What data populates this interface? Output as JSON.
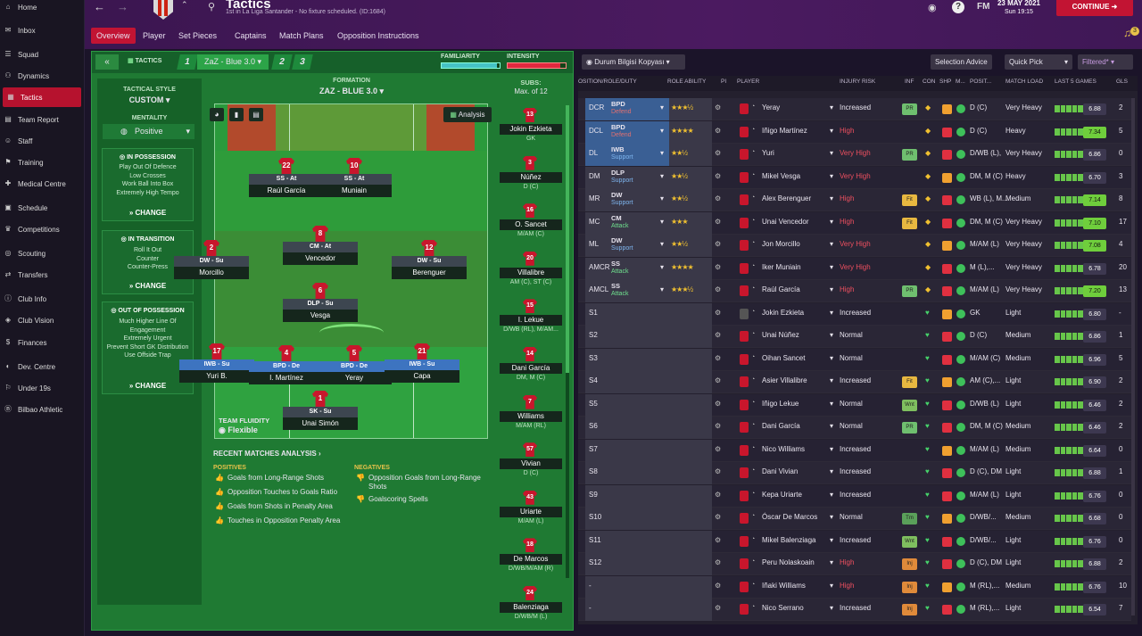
{
  "sidebar": {
    "items": [
      {
        "label": "Home",
        "icon": "home-icon"
      },
      {
        "label": "Inbox",
        "icon": "inbox-icon"
      },
      {
        "label": "Squad",
        "icon": "squad-icon"
      },
      {
        "label": "Dynamics",
        "icon": "dynamics-icon"
      },
      {
        "label": "Tactics",
        "icon": "tactics-icon",
        "active": true
      },
      {
        "label": "Team Report",
        "icon": "report-icon"
      },
      {
        "label": "Staff",
        "icon": "staff-icon"
      },
      {
        "label": "Training",
        "icon": "training-icon"
      },
      {
        "label": "Medical Centre",
        "icon": "medical-icon"
      },
      {
        "label": "Schedule",
        "icon": "schedule-icon"
      },
      {
        "label": "Competitions",
        "icon": "trophy-icon"
      },
      {
        "label": "Scouting",
        "icon": "scouting-icon"
      },
      {
        "label": "Transfers",
        "icon": "transfers-icon"
      },
      {
        "label": "Club Info",
        "icon": "info-icon"
      },
      {
        "label": "Club Vision",
        "icon": "vision-icon"
      },
      {
        "label": "Finances",
        "icon": "finances-icon"
      },
      {
        "label": "Dev. Centre",
        "icon": "dev-icon"
      },
      {
        "label": "Under 19s",
        "icon": "u19-icon"
      },
      {
        "label": "Bilbao Athletic",
        "icon": "b-team-icon"
      }
    ]
  },
  "header": {
    "title": "Tactics",
    "subtitle": "1st in La Liga Santander - No fixture scheduled. (ID:1684)",
    "fm": "FM",
    "date": "23 MAY 2021",
    "time": "Sun 19:15",
    "continue": "CONTINUE",
    "notif": "3"
  },
  "tabs": [
    "Overview",
    "Player",
    "Set Pieces",
    "Captains",
    "Match Plans",
    "Opposition Instructions"
  ],
  "tacbar": {
    "tactics": "TACTICS",
    "t1": "1",
    "t1name": "ZaZ - Blue 3.0",
    "t2": "2",
    "t3": "3",
    "familiarity": "FAMILIARITY",
    "intensity": "INTENSITY",
    "familiarity_level": 0.95,
    "intensity_level": 0.9
  },
  "style": {
    "label": "TACTICAL STYLE",
    "value": "CUSTOM",
    "mentality_label": "MENTALITY",
    "mentality": "Positive",
    "in_possession": {
      "title": "IN POSSESSION",
      "items": [
        "Play Out Of Defence",
        "Low Crosses",
        "Work Ball Into Box",
        "Extremely High Tempo"
      ]
    },
    "in_transition": {
      "title": "IN TRANSITION",
      "items": [
        "Roll It Out",
        "Counter",
        "Counter-Press"
      ]
    },
    "out_of_possession": {
      "title": "OUT OF POSSESSION",
      "items": [
        "Much Higher Line Of Engagement",
        "Extremely Urgent",
        "Prevent Short GK Distribution",
        "Use Offside Trap"
      ]
    },
    "change": "CHANGE"
  },
  "formation": {
    "label": "FORMATION",
    "name": "ZAZ - BLUE 3.0",
    "analysis": "Analysis",
    "fluidity_label": "TEAM FLUIDITY",
    "fluidity": "Flexible"
  },
  "players": [
    {
      "num": "22",
      "role": "SS - At",
      "name": "Raúl García",
      "blue": false
    },
    {
      "num": "10",
      "role": "SS - At",
      "name": "Muniain",
      "blue": false
    },
    {
      "num": "2",
      "role": "DW - Su",
      "name": "Morcillo",
      "blue": false
    },
    {
      "num": "8",
      "role": "CM - At",
      "name": "Vencedor",
      "blue": false
    },
    {
      "num": "12",
      "role": "DW - Su",
      "name": "Berenguer",
      "blue": false
    },
    {
      "num": "6",
      "role": "DLP - Su",
      "name": "Vesga",
      "blue": false
    },
    {
      "num": "17",
      "role": "IWB - Su",
      "name": "Yuri B.",
      "blue": true
    },
    {
      "num": "4",
      "role": "BPD - De",
      "name": "I. Martínez",
      "blue": true
    },
    {
      "num": "5",
      "role": "BPD - De",
      "name": "Yeray",
      "blue": true
    },
    {
      "num": "21",
      "role": "IWB - Su",
      "name": "Capa",
      "blue": true
    },
    {
      "num": "1",
      "role": "SK - Su",
      "name": "Unai Simón",
      "blue": false
    }
  ],
  "subs": {
    "label": "SUBS:",
    "max": "Max. of 12",
    "list": [
      {
        "num": "13",
        "name": "Jokin Ezkieta",
        "pos": "GK"
      },
      {
        "num": "3",
        "name": "Núñez",
        "pos": "D (C)"
      },
      {
        "num": "16",
        "name": "O. Sancet",
        "pos": "M/AM (C)"
      },
      {
        "num": "20",
        "name": "Villalibre",
        "pos": "AM (C), ST (C)"
      },
      {
        "num": "15",
        "name": "I. Lekue",
        "pos": "D/WB (RL), M/AM..."
      },
      {
        "num": "14",
        "name": "Dani García",
        "pos": "DM, M (C)"
      },
      {
        "num": "7",
        "name": "Williams",
        "pos": "M/AM (RL)"
      },
      {
        "num": "57",
        "name": "Vivian",
        "pos": "D (C)"
      },
      {
        "num": "43",
        "name": "Uriarte",
        "pos": "M/AM (L)"
      },
      {
        "num": "18",
        "name": "De Marcos",
        "pos": "D/WB/M/AM (R)"
      },
      {
        "num": "24",
        "name": "Balenziaga",
        "pos": "D/WB/M (L)"
      }
    ]
  },
  "analysis": {
    "title": "RECENT MATCHES ANALYSIS",
    "positives_label": "POSITIVES",
    "positives": [
      "Goals from Long-Range Shots",
      "Opposition Touches to Goals Ratio",
      "Goals from Shots in Penalty Area",
      "Touches in Opposition Penalty Area"
    ],
    "negatives_label": "NEGATIVES",
    "negatives": [
      "Opposition Goals from Long-Range Shots",
      "Goalscoring Spells"
    ]
  },
  "right": {
    "view": "Durum Bilgisi Kopyası",
    "selection_advice": "Selection Advice",
    "quick_pick": "Quick Pick",
    "filtered": "Filtered*",
    "headers": [
      "OSITION/ROLE/DUTY",
      "ROLE ABILITY",
      "PI",
      "PLAYER",
      "INJURY RISK",
      "INF",
      "CON",
      "SHP",
      "M...",
      "POSIT...",
      "MATCH LOAD",
      "LAST 5 GAMES",
      "GLS"
    ],
    "rows": [
      {
        "pos": "DCR",
        "role": "BPD",
        "duty": "Defend",
        "stars": "★★★½",
        "player": "Yeray",
        "risk": "Increased",
        "inf": "PR",
        "positions": "D (C)",
        "load": "Very Heavy",
        "rating": "6.88",
        "gls": "2",
        "hi": false
      },
      {
        "pos": "DCL",
        "role": "BPD",
        "duty": "Defend",
        "stars": "★★★★",
        "player": "Iñigo Martínez",
        "risk": "High",
        "inf": "",
        "positions": "D (C)",
        "load": "Heavy",
        "rating": "7.34",
        "gls": "5",
        "hi": true
      },
      {
        "pos": "DL",
        "role": "IWB",
        "duty": "Support",
        "stars": "★★½",
        "player": "Yuri",
        "risk": "Very High",
        "inf": "PR",
        "positions": "D/WB (L),",
        "load": "Very Heavy",
        "rating": "6.86",
        "gls": "0",
        "hi": false
      },
      {
        "pos": "DM",
        "role": "DLP",
        "duty": "Support",
        "stars": "★★½",
        "player": "Mikel Vesga",
        "risk": "Very High",
        "inf": "",
        "positions": "DM, M (C)",
        "load": "Heavy",
        "rating": "6.70",
        "gls": "3",
        "hi": false
      },
      {
        "pos": "MR",
        "role": "DW",
        "duty": "Support",
        "stars": "★★½",
        "player": "Alex Berenguer",
        "risk": "High",
        "inf": "Fit",
        "positions": "WB (L), M...",
        "load": "Medium",
        "rating": "7.14",
        "gls": "8",
        "hi": true
      },
      {
        "pos": "MC",
        "role": "CM",
        "duty": "Attack",
        "stars": "★★★",
        "player": "Unai Vencedor",
        "risk": "High",
        "inf": "Fit",
        "positions": "DM, M (C)",
        "load": "Very Heavy",
        "rating": "7.10",
        "gls": "17",
        "hi": true
      },
      {
        "pos": "ML",
        "role": "DW",
        "duty": "Support",
        "stars": "★★½",
        "player": "Jon Morcillo",
        "risk": "Very High",
        "inf": "",
        "positions": "M/AM (L)",
        "load": "Very Heavy",
        "rating": "7.08",
        "gls": "4",
        "hi": true
      },
      {
        "pos": "AMCR",
        "role": "SS",
        "duty": "Attack",
        "stars": "★★★★",
        "player": "Iker Muniain",
        "risk": "Very High",
        "inf": "",
        "positions": "M (L),...",
        "load": "Very Heavy",
        "rating": "6.78",
        "gls": "20",
        "hi": false
      },
      {
        "pos": "AMCL",
        "role": "SS",
        "duty": "Attack",
        "stars": "★★★½",
        "player": "Raúl García",
        "risk": "High",
        "inf": "PR",
        "positions": "M/AM (L)",
        "load": "Very Heavy",
        "rating": "7.20",
        "gls": "13",
        "hi": true
      },
      {
        "pos": "S1",
        "role": "",
        "duty": "",
        "stars": "",
        "player": "Jokin Ezkieta",
        "risk": "Increased",
        "inf": "",
        "positions": "GK",
        "load": "Light",
        "rating": "6.80",
        "gls": "-",
        "hi": false
      },
      {
        "pos": "S2",
        "role": "",
        "duty": "",
        "stars": "",
        "player": "Unai Núñez",
        "risk": "Normal",
        "inf": "",
        "positions": "D (C)",
        "load": "Medium",
        "rating": "6.86",
        "gls": "1",
        "hi": false
      },
      {
        "pos": "S3",
        "role": "",
        "duty": "",
        "stars": "",
        "player": "Oihan Sancet",
        "risk": "Normal",
        "inf": "",
        "positions": "M/AM (C)",
        "load": "Medium",
        "rating": "6.96",
        "gls": "5",
        "hi": false
      },
      {
        "pos": "S4",
        "role": "",
        "duty": "",
        "stars": "",
        "player": "Asier Villalibre",
        "risk": "Increased",
        "inf": "Fit",
        "positions": "AM (C),...",
        "load": "Light",
        "rating": "6.90",
        "gls": "2",
        "hi": false
      },
      {
        "pos": "S5",
        "role": "",
        "duty": "",
        "stars": "",
        "player": "Iñigo Lekue",
        "risk": "Normal",
        "inf": "Wnt",
        "positions": "D/WB (L)",
        "load": "Light",
        "rating": "6.46",
        "gls": "2",
        "hi": false
      },
      {
        "pos": "S6",
        "role": "",
        "duty": "",
        "stars": "",
        "player": "Dani García",
        "risk": "Normal",
        "inf": "PR",
        "positions": "DM, M (C)",
        "load": "Medium",
        "rating": "6.46",
        "gls": "2",
        "hi": false
      },
      {
        "pos": "S7",
        "role": "",
        "duty": "",
        "stars": "",
        "player": "Nico Williams",
        "risk": "Increased",
        "inf": "",
        "positions": "M/AM (L)",
        "load": "Medium",
        "rating": "6.64",
        "gls": "0",
        "hi": false
      },
      {
        "pos": "S8",
        "role": "",
        "duty": "",
        "stars": "",
        "player": "Dani Vivian",
        "risk": "Increased",
        "inf": "",
        "positions": "D (C), DM",
        "load": "Light",
        "rating": "6.88",
        "gls": "1",
        "hi": false
      },
      {
        "pos": "S9",
        "role": "",
        "duty": "",
        "stars": "",
        "player": "Kepa Uriarte",
        "risk": "Increased",
        "inf": "",
        "positions": "M/AM (L)",
        "load": "Light",
        "rating": "6.76",
        "gls": "0",
        "hi": false
      },
      {
        "pos": "S10",
        "role": "",
        "duty": "",
        "stars": "",
        "player": "Óscar De Marcos",
        "risk": "Normal",
        "inf": "Tm",
        "positions": "D/WB/...",
        "load": "Medium",
        "rating": "6.68",
        "gls": "0",
        "hi": false
      },
      {
        "pos": "S11",
        "role": "",
        "duty": "",
        "stars": "",
        "player": "Mikel Balenziaga",
        "risk": "Increased",
        "inf": "Wnt",
        "positions": "D/WB/...",
        "load": "Light",
        "rating": "6.76",
        "gls": "0",
        "hi": false
      },
      {
        "pos": "S12",
        "role": "",
        "duty": "",
        "stars": "",
        "player": "Peru Nolaskoain",
        "risk": "High",
        "inf": "Inj",
        "positions": "D (C), DM",
        "load": "Light",
        "rating": "6.88",
        "gls": "2",
        "hi": false
      },
      {
        "pos": "-",
        "role": "",
        "duty": "",
        "stars": "",
        "player": "Iñaki Williams",
        "risk": "High",
        "inf": "Inj",
        "positions": "M (RL),...",
        "load": "Medium",
        "rating": "6.76",
        "gls": "10",
        "hi": false
      },
      {
        "pos": "-",
        "role": "",
        "duty": "",
        "stars": "",
        "player": "Nico Serrano",
        "risk": "Increased",
        "inf": "Inj",
        "positions": "M (RL),...",
        "load": "Light",
        "rating": "6.54",
        "gls": "7",
        "hi": false
      }
    ]
  }
}
